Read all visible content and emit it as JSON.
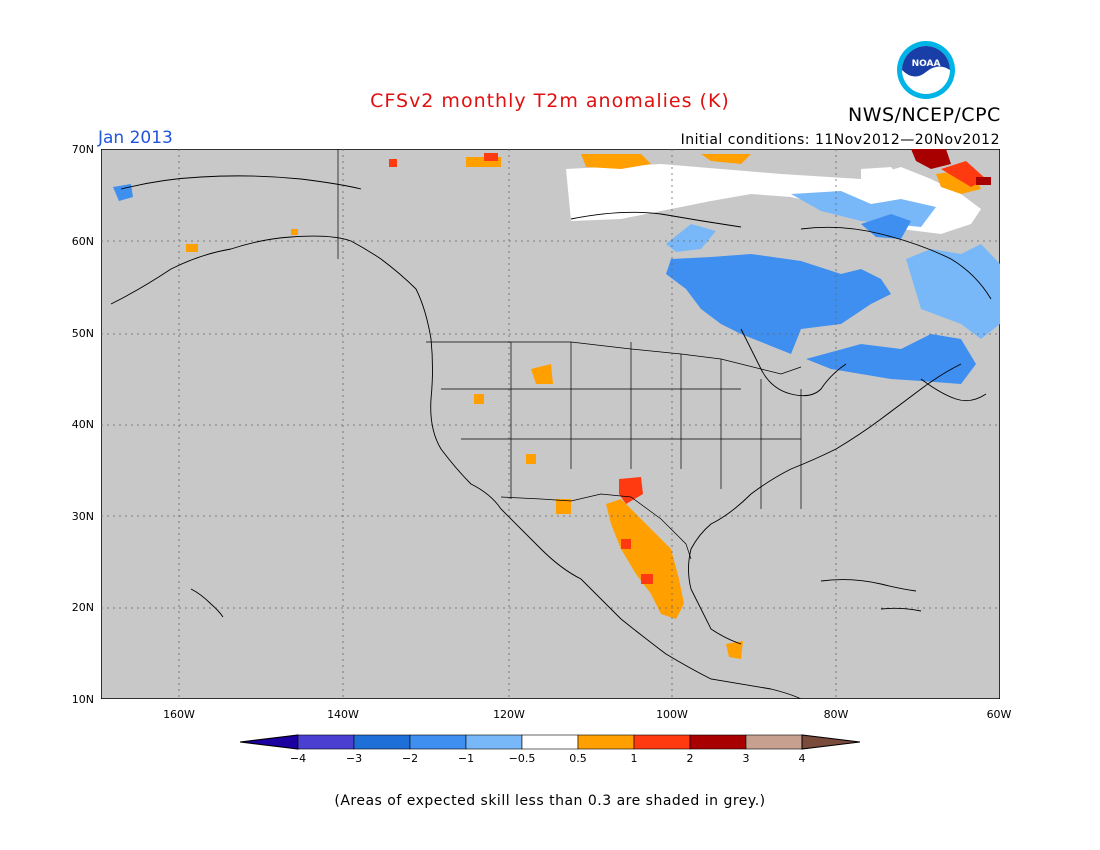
{
  "title": "CFSv2 monthly T2m anomalies (K)",
  "period": "Jan 2013",
  "initial_conditions": "Initial conditions: 11Nov2012—20Nov2012",
  "agency": "NWS/NCEP/CPC",
  "logo_text": "NOAA",
  "lat_labels": [
    "70N",
    "60N",
    "50N",
    "40N",
    "30N",
    "20N",
    "10N"
  ],
  "lon_labels": [
    "160W",
    "140W",
    "120W",
    "100W",
    "80W",
    "60W"
  ],
  "colorbar": {
    "ticks": [
      "−4",
      "−3",
      "−2",
      "−1",
      "−0.5",
      "0.5",
      "1",
      "2",
      "3",
      "4"
    ],
    "colors": [
      "#1c00a0",
      "#4a3fd0",
      "#1e6fd8",
      "#3f8ff0",
      "#78b8f8",
      "#ffffff",
      "#ffa000",
      "#ff3a10",
      "#a80000",
      "#c8a090",
      "#7a4a3a"
    ]
  },
  "note": "(Areas of expected skill less than 0.3 are shaded in grey.)",
  "map": {
    "background_color": "#c8c8c8",
    "anomaly_regions": [
      {
        "name": "canada-cold-anomaly",
        "value": "-1 to -2",
        "color": "#3f8ff0"
      },
      {
        "name": "canada-slight-cold",
        "value": "-0.5 to -1",
        "color": "#78b8f8"
      },
      {
        "name": "arctic-near-normal",
        "value": "-0.5 to 0.5",
        "color": "#ffffff"
      },
      {
        "name": "mexico-warm-anomaly",
        "value": "0.5 to 1",
        "color": "#ffa000"
      },
      {
        "name": "new-mexico-warm-anomaly",
        "value": "1 to 2",
        "color": "#ff3a10"
      },
      {
        "name": "greenland-warm-anomaly",
        "value": "2 to 3",
        "color": "#a80000"
      }
    ]
  }
}
